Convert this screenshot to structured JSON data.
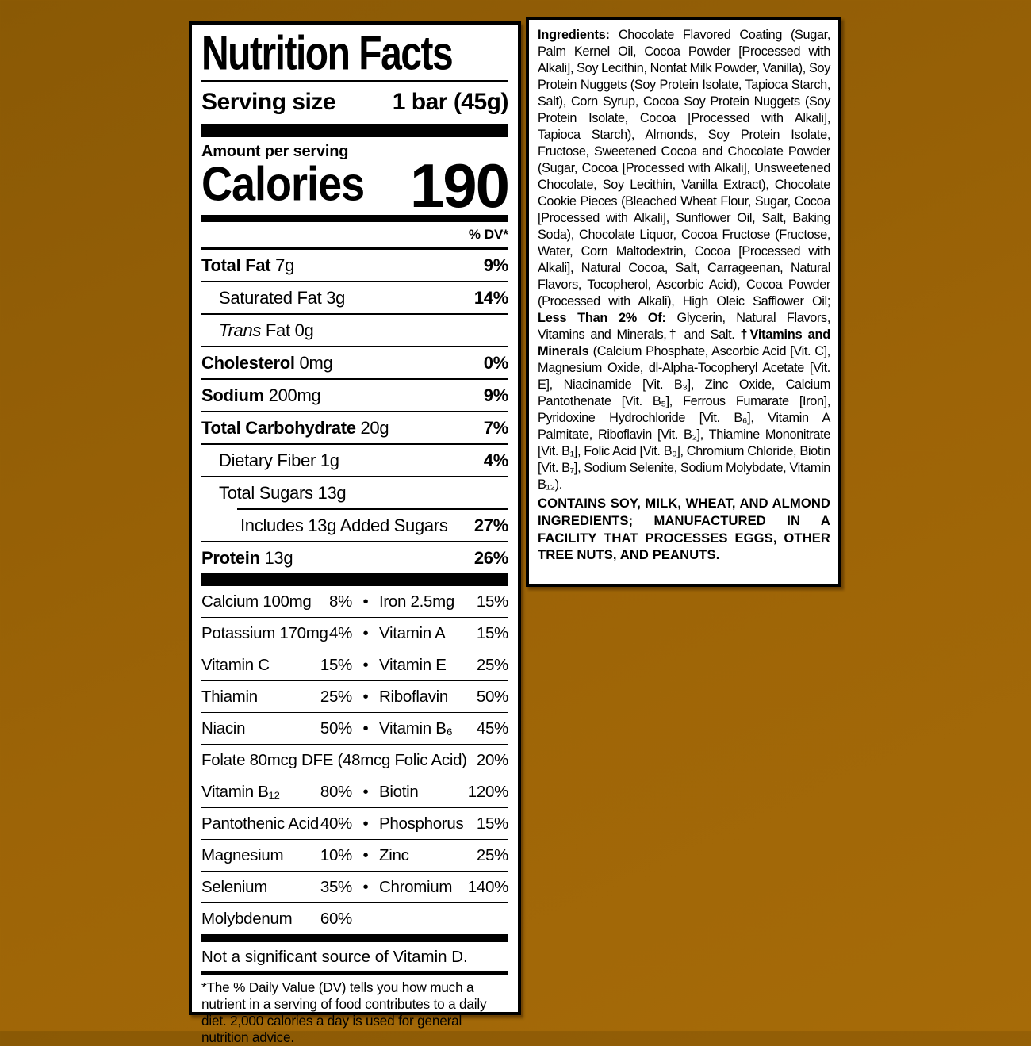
{
  "background": {
    "top_color": "#8a5905",
    "bottom_color": "#a66b08",
    "panel_border": "#000000",
    "panel_bg": "#ffffff"
  },
  "nutrition_panel": {
    "title": "Nutrition Facts",
    "serving_label": "Serving size",
    "serving_value": "1 bar (45g)",
    "amount_label": "Amount per serving",
    "calories_label": "Calories",
    "calories_value": "190",
    "dv_header": "% DV*",
    "nutrient_rows": [
      {
        "name": "Total Fat",
        "value": "7g",
        "pct": "9%",
        "bold": true,
        "indent": 0
      },
      {
        "name": "Saturated Fat",
        "value": "3g",
        "pct": "14%",
        "indent": 1
      },
      {
        "name_italic": "Trans",
        "name": " Fat",
        "value": "0g",
        "indent": 1
      },
      {
        "name": "Cholesterol",
        "value": "0mg",
        "pct": "0%",
        "bold": true,
        "indent": 0
      },
      {
        "name": "Sodium",
        "value": "200mg",
        "pct": "9%",
        "bold": true,
        "indent": 0
      },
      {
        "name": "Total Carbohydrate",
        "value": "20g",
        "pct": "7%",
        "bold": true,
        "indent": 0
      },
      {
        "name": "Dietary Fiber",
        "value": "1g",
        "pct": "4%",
        "indent": 1
      },
      {
        "name": "Total Sugars",
        "value": "13g",
        "indent": 1
      },
      {
        "name": "Includes 13g Added Sugars",
        "pct": "27%",
        "indent": 2,
        "inset": true
      },
      {
        "name": "Protein",
        "value": "13g",
        "pct": "26%",
        "bold": true,
        "indent": 0
      }
    ],
    "vitamin_rows": [
      {
        "left": [
          "Calcium 100mg",
          "8%"
        ],
        "right": [
          "Iron 2.5mg",
          "15%"
        ]
      },
      {
        "left": [
          "Potassium 170mg",
          "4%"
        ],
        "right": [
          "Vitamin A",
          "15%"
        ]
      },
      {
        "left": [
          "Vitamin C",
          "15%"
        ],
        "right": [
          "Vitamin E",
          "25%"
        ]
      },
      {
        "left": [
          "Thiamin",
          "25%"
        ],
        "right": [
          "Riboflavin",
          "50%"
        ]
      },
      {
        "left": [
          "Niacin",
          "50%"
        ],
        "right": [
          "Vitamin B₆",
          "45%"
        ]
      },
      {
        "full": [
          "Folate 80mcg DFE (48mcg Folic Acid)",
          "20%"
        ]
      },
      {
        "left": [
          "Vitamin B₁₂",
          "80%"
        ],
        "right": [
          "Biotin",
          "120%"
        ]
      },
      {
        "left": [
          "Pantothenic Acid",
          "40%"
        ],
        "right": [
          "Phosphorus",
          "15%"
        ]
      },
      {
        "left": [
          "Magnesium",
          "10%"
        ],
        "right": [
          "Zinc",
          "25%"
        ]
      },
      {
        "left": [
          "Selenium",
          "35%"
        ],
        "right": [
          "Chromium",
          "140%"
        ]
      },
      {
        "left": [
          "Molybdenum",
          "60%"
        ]
      }
    ],
    "not_significant": "Not a significant source of Vitamin D.",
    "footnote": "*The % Daily Value (DV) tells you how much a nutrient in a serving of food contributes to a daily diet. 2,000 calories a day is used for general nutrition advice."
  },
  "ingredients_panel": {
    "segments": [
      {
        "text": "Ingredients: ",
        "bold": true
      },
      {
        "text": "Chocolate Flavored Coating (Sugar, Palm Kernel Oil, Cocoa Powder [Processed with Alkali], Soy Lecithin, Nonfat Milk Powder, Vanilla), Soy Protein Nuggets (Soy Protein Isolate, Tapioca Starch, Salt), Corn Syrup, Cocoa Soy Protein Nuggets (Soy Protein Isolate, Cocoa [Processed with Alkali], Tapioca Starch), Almonds, Soy Protein Isolate, Fructose, Sweetened Cocoa and Chocolate Powder (Sugar, Cocoa [Processed with Alkali], Unsweetened Chocolate, Soy Lecithin, Vanilla Extract), Chocolate Cookie Pieces (Bleached Wheat Flour, Sugar, Cocoa [Processed with Alkali], Sunflower Oil, Salt, Baking Soda), Chocolate Liquor, Cocoa Fructose (Fructose, Water, Corn Maltodextrin, Cocoa [Processed with Alkali], Natural Cocoa, Salt, Carrageenan, Natural Flavors, Tocopherol, Ascorbic Acid), Cocoa Powder (Processed with Alkali), High Oleic Safflower Oil; ",
        "bold": false
      },
      {
        "text": "Less Than 2% Of: ",
        "bold": true
      },
      {
        "text": "Glycerin, Natural Flavors, Vitamins and Minerals,† and Salt. ",
        "bold": false
      },
      {
        "text": "†Vitamins and Minerals ",
        "bold": true
      },
      {
        "text": "(Calcium Phosphate, Ascorbic Acid [Vit. C], Magnesium Oxide, dl-Alpha-Tocopheryl Acetate [Vit. E], Niacinamide [Vit. B₃], Zinc Oxide, Calcium Pantothenate [Vit. B₅], Ferrous Fumarate [Iron], Pyridoxine Hydrochloride [Vit. B₆], Vitamin A Palmitate, Riboflavin [Vit. B₂], Thiamine Mononitrate [Vit. B₁], Folic Acid [Vit. B₉], Chromium Chloride, Biotin [Vit. B₇], Sodium Selenite, Sodium Molybdate, Vitamin B₁₂).",
        "bold": false
      }
    ],
    "allergen": "CONTAINS SOY, MILK, WHEAT, AND ALMOND INGREDIENTS; MANUFACTURED IN A FACILITY THAT PROCESSES EGGS, OTHER TREE NUTS, AND PEANUTS."
  }
}
